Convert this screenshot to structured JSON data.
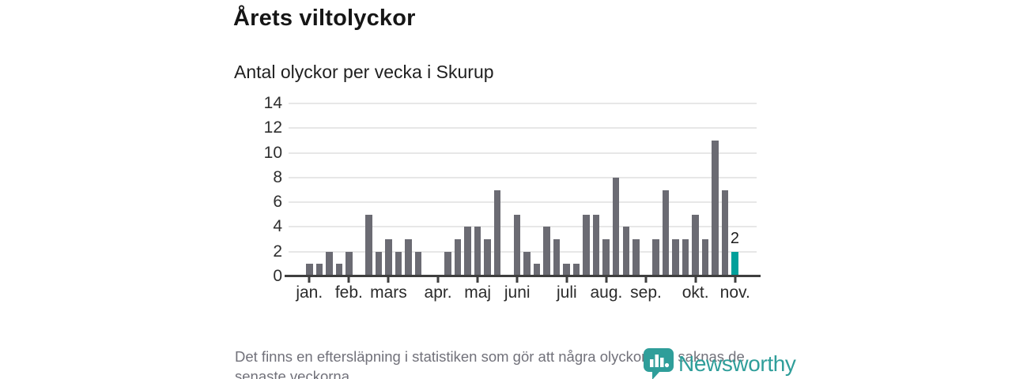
{
  "header": {
    "title": "Årets viltolyckor",
    "subtitle": "Antal olyckor per vecka i Skurup"
  },
  "footer": {
    "note": "Det finns en eftersläpning i statistiken som gör att några olyckor kan saknas de senaste veckorna.",
    "brand": "Newsworthy"
  },
  "icons": {
    "logo_pin": "map-pin-with-bar-chart"
  },
  "colors": {
    "bar": "#6b6b73",
    "accent": "#00a09b",
    "grid": "#e7e7e7",
    "axis": "#3f3f3f",
    "logo": "#2f9e9a"
  },
  "chart_data": {
    "type": "bar",
    "title": "Årets viltolyckor",
    "subtitle": "Antal olyckor per vecka i Skurup",
    "x_unit": "vecka (week of year)",
    "ylabel": "",
    "xlabel": "",
    "ylim": [
      0,
      14
    ],
    "yticks": [
      0,
      2,
      4,
      6,
      8,
      10,
      12,
      14
    ],
    "grid": true,
    "legend": false,
    "weeks": [
      1,
      2,
      3,
      4,
      5,
      6,
      7,
      8,
      9,
      10,
      11,
      12,
      13,
      14,
      15,
      16,
      17,
      18,
      19,
      20,
      21,
      22,
      23,
      24,
      25,
      26,
      27,
      28,
      29,
      30,
      31,
      32,
      33,
      34,
      35,
      36,
      37,
      38,
      39,
      40,
      41,
      42,
      43,
      44
    ],
    "values": [
      1,
      1,
      2,
      1,
      2,
      0,
      5,
      2,
      3,
      2,
      3,
      2,
      0,
      0,
      2,
      3,
      4,
      4,
      3,
      7,
      0,
      5,
      2,
      1,
      4,
      3,
      1,
      1,
      5,
      5,
      3,
      8,
      4,
      3,
      0,
      3,
      7,
      3,
      3,
      5,
      3,
      11,
      7,
      2
    ],
    "highlight_last": true,
    "last_value_label": "2",
    "month_ticks": [
      {
        "label": "jan.",
        "week": 1
      },
      {
        "label": "feb.",
        "week": 5
      },
      {
        "label": "mars",
        "week": 9
      },
      {
        "label": "apr.",
        "week": 14
      },
      {
        "label": "maj",
        "week": 18
      },
      {
        "label": "juni",
        "week": 22
      },
      {
        "label": "juli",
        "week": 27
      },
      {
        "label": "aug.",
        "week": 31
      },
      {
        "label": "sep.",
        "week": 35
      },
      {
        "label": "okt.",
        "week": 40
      },
      {
        "label": "nov.",
        "week": 44
      }
    ]
  }
}
